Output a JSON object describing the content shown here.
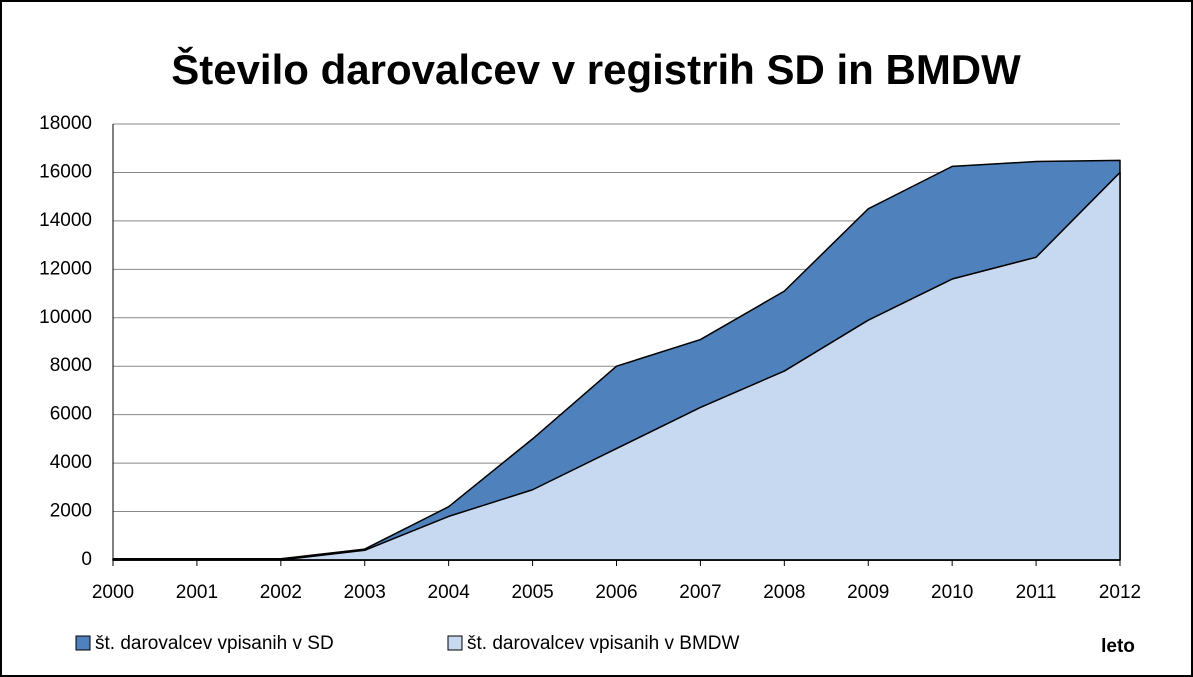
{
  "chart_data": {
    "type": "area",
    "title": "Število darovalcev v registrih SD in BMDW",
    "x_label": "leto",
    "categories": [
      "2000",
      "2001",
      "2002",
      "2003",
      "2004",
      "2005",
      "2006",
      "2007",
      "2008",
      "2009",
      "2010",
      "2011",
      "2012"
    ],
    "series": [
      {
        "name": "št. darovalcev vpisanih v SD",
        "color": "#4f81bd",
        "values": [
          50,
          50,
          50,
          450,
          2200,
          5000,
          8000,
          9100,
          11100,
          14500,
          16250,
          16450,
          16500
        ]
      },
      {
        "name": "št. darovalcev vpisanih v BMDW",
        "color": "#c6d9f1",
        "values": [
          0,
          0,
          0,
          400,
          1800,
          2900,
          4600,
          6300,
          7800,
          9900,
          11600,
          12500,
          16000
        ]
      }
    ],
    "ylim": [
      0,
      18000
    ],
    "yticks": [
      0,
      2000,
      4000,
      6000,
      8000,
      10000,
      12000,
      14000,
      16000,
      18000
    ],
    "grid": true
  }
}
